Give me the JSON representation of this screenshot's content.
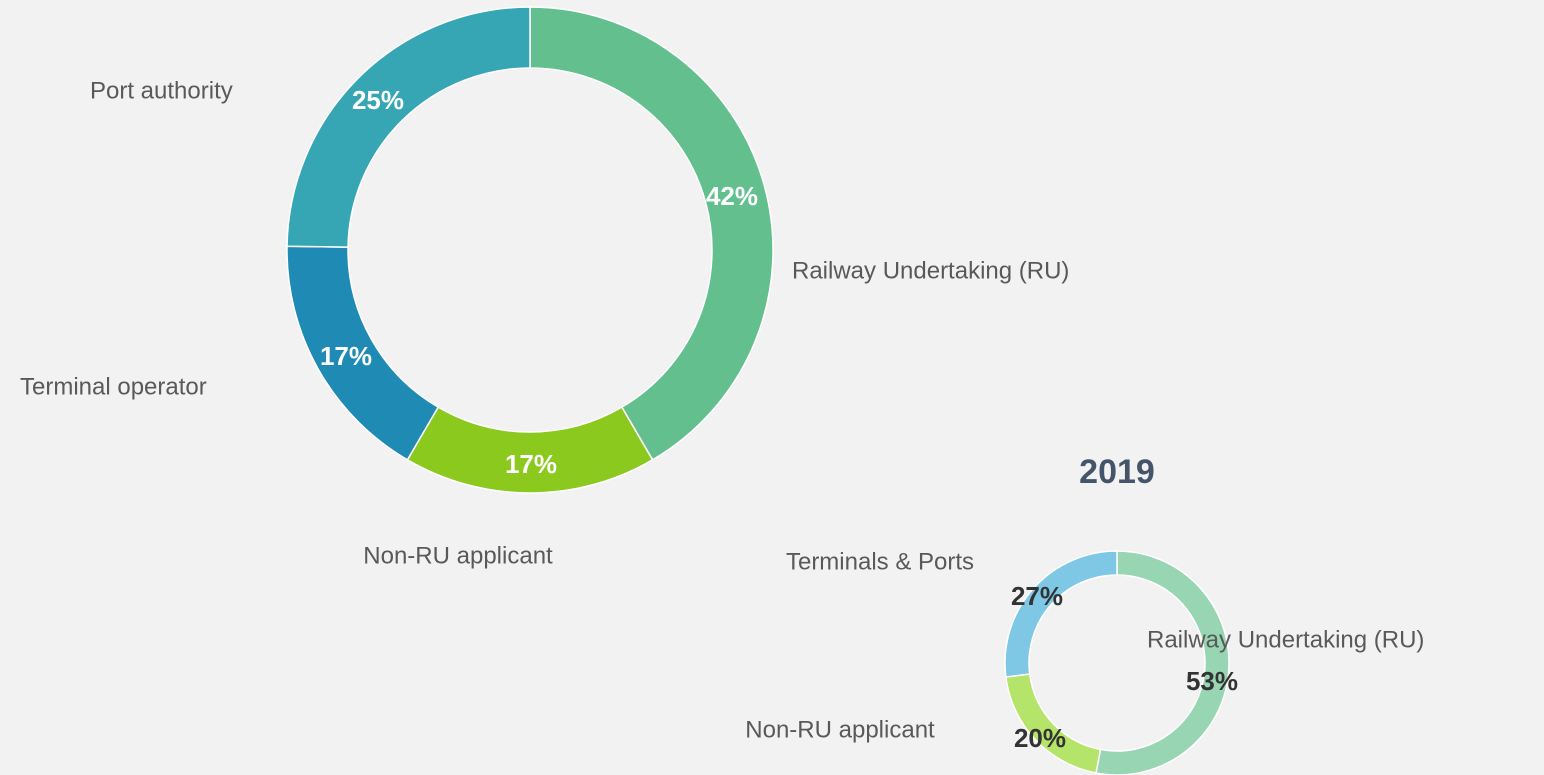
{
  "chart_data": [
    {
      "type": "donut",
      "categories": [
        "Railway Undertaking (RU)",
        "Non-RU applicant",
        "Terminal operator",
        "Port authority"
      ],
      "values": [
        42,
        17,
        17,
        25
      ],
      "value_labels": [
        "42%",
        "17%",
        "17%",
        "25%"
      ],
      "colors": [
        "#63c08e",
        "#8cc91e",
        "#1f8ab4",
        "#36a6b4"
      ]
    },
    {
      "type": "donut",
      "title": "2019",
      "categories": [
        "Railway Undertaking (RU)",
        "Non-RU applicant",
        "Terminals & Ports"
      ],
      "values": [
        53,
        20,
        27
      ],
      "value_labels": [
        "53%",
        "20%",
        "27%"
      ],
      "colors": [
        "#98d5b3",
        "#b5e46a",
        "#7ec8e6"
      ]
    }
  ]
}
